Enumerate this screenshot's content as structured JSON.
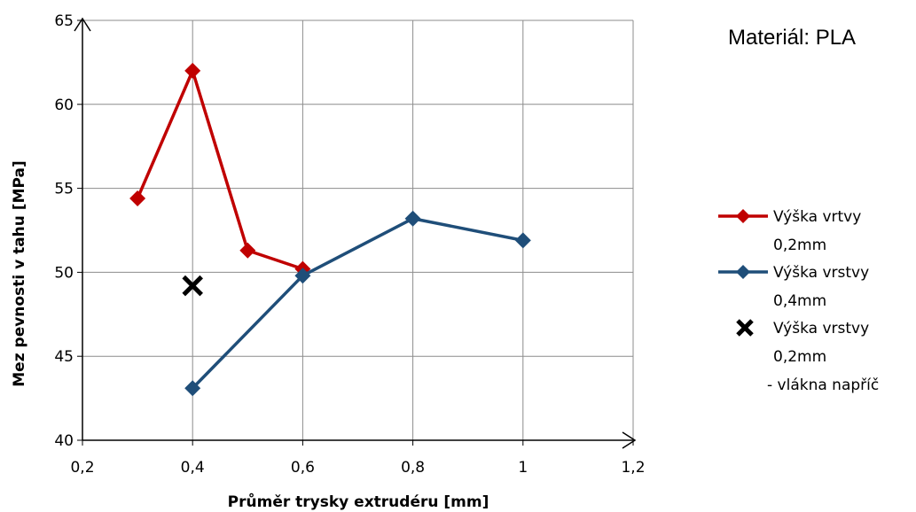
{
  "chart_data": {
    "type": "line",
    "annotation": "Materiál: PLA",
    "xlabel": "Průměr trysky extrudéru [mm]",
    "ylabel": "Mez pevnosti v tahu [MPa]",
    "xlim": [
      0.2,
      1.2
    ],
    "ylim": [
      40,
      65
    ],
    "x_ticks": [
      "0,2",
      "0,4",
      "0,6",
      "0,8",
      "1",
      "1,2"
    ],
    "y_ticks": [
      "40",
      "45",
      "50",
      "55",
      "60",
      "65"
    ],
    "grid": true,
    "legend_position": "right",
    "series": [
      {
        "name": [
          "Výška vrtvy",
          "0,2mm"
        ],
        "color": "#c00000",
        "marker": "diamond",
        "x": [
          0.3,
          0.4,
          0.5,
          0.6
        ],
        "y": [
          54.4,
          62.0,
          51.3,
          50.2
        ]
      },
      {
        "name": [
          "Výška vrstvy",
          "0,4mm"
        ],
        "color": "#1f4e79",
        "marker": "diamond",
        "x": [
          0.4,
          0.6,
          0.8,
          1.0
        ],
        "y": [
          43.1,
          49.8,
          53.2,
          51.9
        ]
      },
      {
        "name": [
          "Výška vrstvy",
          "0,2mm",
          "- vlákna napříč"
        ],
        "color": "#000000",
        "marker": "x",
        "x": [
          0.4
        ],
        "y": [
          49.2
        ]
      }
    ]
  }
}
